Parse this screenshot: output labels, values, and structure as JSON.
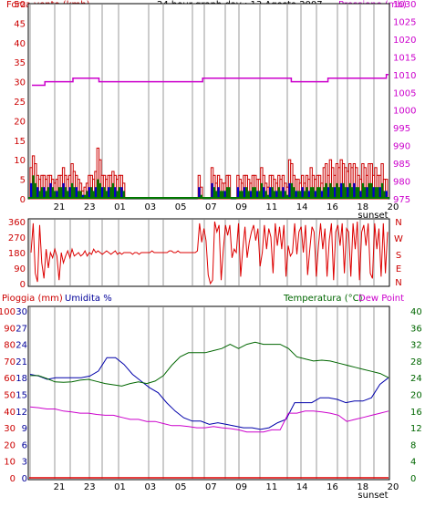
{
  "header": {
    "left_label": "Forza vento (kmh)",
    "title": "24 hour graph day : 13 Agosto 2007",
    "right_label": "Pressione (mb)"
  },
  "colors": {
    "wind": "#cc0000",
    "gust_fill": "#ffffff",
    "wind_green": "#007700",
    "wind_blue": "#0000cc",
    "pressure": "#cc00cc",
    "direction": "#dd0000",
    "rain": "#dd0000",
    "humidity": "#0000aa",
    "temperature": "#006600",
    "dewpoint": "#cc00cc",
    "gridline": "#cccccc",
    "frame": "#000000"
  },
  "bottom_header": {
    "rain_label": "Pioggia (mm)",
    "humidity_label": "Umidita %",
    "temp_label": "Temperatura (°C)",
    "dew_label": "Dew Point"
  },
  "chart_data": [
    {
      "id": "wind-pressure",
      "type": "bar",
      "x_ticks": [
        "21",
        "23",
        "01",
        "03",
        "05",
        "07",
        "09",
        "11",
        "14",
        "16",
        "18",
        "20"
      ],
      "x_annotation": "sunset",
      "left_axis": {
        "ticks": [
          0,
          5,
          10,
          15,
          20,
          25,
          30,
          35,
          40,
          45,
          50
        ],
        "ylim": [
          0,
          50
        ]
      },
      "right_axis": {
        "ticks": [
          975,
          980,
          985,
          990,
          995,
          1000,
          1005,
          1010,
          1015,
          1020,
          1025,
          1030
        ],
        "ylim": [
          975,
          1030
        ]
      },
      "series": [
        {
          "id": "gust",
          "axis": "left",
          "values": [
            8,
            11,
            9,
            6,
            5,
            6,
            6,
            5,
            6,
            6,
            5,
            4,
            5,
            6,
            6,
            8,
            6,
            5,
            6,
            9,
            7,
            6,
            5,
            4,
            2,
            3,
            4,
            6,
            6,
            5,
            7,
            13,
            10,
            6,
            6,
            5,
            6,
            6,
            7,
            6,
            5,
            6,
            6,
            4,
            0,
            0,
            0,
            0,
            0,
            0,
            0,
            0,
            0,
            0,
            0,
            0,
            0,
            0,
            0,
            0,
            0,
            0,
            0,
            0,
            0,
            0,
            0,
            0,
            0,
            0,
            0,
            0,
            0,
            0,
            0,
            0,
            0,
            0,
            6,
            3,
            0,
            0,
            0,
            0,
            8,
            6,
            4,
            6,
            5,
            4,
            4,
            6,
            6,
            0,
            0,
            0,
            6,
            5,
            4,
            6,
            6,
            5,
            4,
            6,
            6,
            5,
            5,
            8,
            6,
            4,
            3,
            6,
            6,
            5,
            4,
            6,
            5,
            6,
            4,
            3,
            10,
            9,
            6,
            5,
            5,
            4,
            6,
            4,
            6,
            5,
            8,
            6,
            5,
            6,
            6,
            4,
            8,
            9,
            6,
            10,
            8,
            6,
            9,
            8,
            10,
            9,
            8,
            7,
            9,
            8,
            9,
            8,
            6,
            5,
            9,
            8,
            6,
            9,
            9,
            6,
            8,
            6,
            6,
            9,
            5,
            5
          ]
        },
        {
          "id": "avg",
          "axis": "left",
          "values": [
            4,
            6,
            4,
            3,
            2,
            3,
            3,
            2,
            3,
            4,
            3,
            2,
            2,
            3,
            3,
            4,
            3,
            2,
            3,
            4,
            3,
            3,
            2,
            2,
            1,
            1,
            2,
            3,
            3,
            2,
            3,
            5,
            4,
            3,
            3,
            2,
            3,
            3,
            4,
            3,
            2,
            3,
            3,
            2,
            0,
            0,
            0,
            0,
            0,
            0,
            0,
            0,
            0,
            0,
            0,
            0,
            0,
            0,
            0,
            0,
            0,
            0,
            0,
            0,
            0,
            0,
            0,
            0,
            0,
            0,
            0,
            0,
            0,
            0,
            0,
            0,
            0,
            0,
            3,
            1,
            0,
            0,
            0,
            0,
            4,
            3,
            2,
            3,
            2,
            2,
            2,
            3,
            3,
            0,
            0,
            0,
            3,
            2,
            2,
            3,
            3,
            2,
            2,
            3,
            3,
            2,
            2,
            4,
            3,
            2,
            1,
            3,
            3,
            2,
            2,
            3,
            2,
            3,
            2,
            1,
            4,
            4,
            3,
            2,
            2,
            2,
            3,
            2,
            3,
            2,
            3,
            3,
            2,
            3,
            3,
            2,
            3,
            4,
            3,
            4,
            3,
            3,
            4,
            3,
            4,
            4,
            3,
            3,
            4,
            3,
            4,
            3,
            3,
            2,
            4,
            3,
            3,
            4,
            4,
            3,
            3,
            3,
            3,
            4,
            2,
            2
          ]
        },
        {
          "id": "pressure",
          "axis": "right",
          "values": [
            1007,
            1007,
            1007,
            1007,
            1007,
            1007,
            1008,
            1008,
            1008,
            1008,
            1008,
            1008,
            1008,
            1008,
            1008,
            1008,
            1008,
            1008,
            1008,
            1009,
            1009,
            1009,
            1009,
            1009,
            1009,
            1009,
            1009,
            1009,
            1009,
            1009,
            1009,
            1008,
            1008,
            1008,
            1008,
            1008,
            1008,
            1008,
            1008,
            1008,
            1008,
            1008,
            1008,
            1008,
            1008,
            1008,
            1008,
            1008,
            1008,
            1008,
            1008,
            1008,
            1008,
            1008,
            1008,
            1008,
            1008,
            1008,
            1008,
            1008,
            1008,
            1008,
            1008,
            1008,
            1008,
            1008,
            1008,
            1008,
            1008,
            1008,
            1008,
            1008,
            1008,
            1008,
            1008,
            1008,
            1008,
            1008,
            1008,
            1009,
            1009,
            1009,
            1009,
            1009,
            1009,
            1009,
            1009,
            1009,
            1009,
            1009,
            1009,
            1009,
            1009,
            1009,
            1009,
            1009,
            1009,
            1009,
            1009,
            1009,
            1009,
            1009,
            1009,
            1009,
            1009,
            1009,
            1009,
            1009,
            1009,
            1009,
            1009,
            1009,
            1009,
            1009,
            1009,
            1009,
            1009,
            1009,
            1009,
            1009,
            1008,
            1008,
            1008,
            1008,
            1008,
            1008,
            1008,
            1008,
            1008,
            1008,
            1008,
            1008,
            1008,
            1008,
            1008,
            1008,
            1008,
            1009,
            1009,
            1009,
            1009,
            1009,
            1009,
            1009,
            1009,
            1009,
            1009,
            1009,
            1009,
            1009,
            1009,
            1009,
            1009,
            1009,
            1009,
            1009,
            1009,
            1009,
            1009,
            1009,
            1009,
            1009,
            1009,
            1009,
            1010,
            1010
          ]
        }
      ]
    },
    {
      "id": "wind-direction",
      "type": "line",
      "x_ticks": [
        "21",
        "23",
        "01",
        "03",
        "05",
        "07",
        "09",
        "11",
        "14",
        "16",
        "18",
        "20"
      ],
      "left_axis": {
        "ticks": [
          0,
          90,
          180,
          270,
          360
        ],
        "ylim": [
          0,
          360
        ]
      },
      "right_axis": {
        "labels": [
          "N",
          "W",
          "S",
          "E",
          "N"
        ]
      },
      "series": [
        {
          "id": "direction",
          "values": [
            180,
            350,
            60,
            10,
            340,
            120,
            30,
            200,
            90,
            180,
            150,
            200,
            160,
            20,
            180,
            120,
            160,
            190,
            150,
            200,
            160,
            170,
            180,
            160,
            170,
            190,
            160,
            180,
            170,
            200,
            180,
            190,
            180,
            170,
            180,
            190,
            180,
            170,
            180,
            190,
            170,
            180,
            170,
            180,
            180,
            180,
            180,
            170,
            180,
            180,
            170,
            180,
            180,
            180,
            180,
            180,
            190,
            180,
            180,
            180,
            180,
            180,
            180,
            180,
            190,
            190,
            180,
            180,
            190,
            180,
            180,
            180,
            180,
            180,
            180,
            180,
            180,
            190,
            350,
            240,
            320,
            250,
            50,
            0,
            20,
            360,
            300,
            340,
            20,
            200,
            340,
            280,
            340,
            150,
            200,
            180,
            350,
            40,
            200,
            330,
            150,
            240,
            300,
            340,
            250,
            320,
            100,
            180,
            340,
            200,
            320,
            270,
            60,
            350,
            220,
            330,
            200,
            340,
            40,
            220,
            160,
            180,
            350,
            170,
            300,
            330,
            180,
            340,
            50,
            200,
            330,
            300,
            40,
            220,
            350,
            200,
            320,
            40,
            250,
            350,
            20,
            300,
            340,
            220,
            350,
            60,
            320,
            300,
            40,
            350,
            200,
            360,
            20,
            300,
            340,
            220,
            350,
            60,
            30,
            350,
            200,
            320,
            40,
            350,
            60,
            300
          ]
        }
      ]
    },
    {
      "id": "temp-humidity",
      "type": "line",
      "x_ticks": [
        "21",
        "23",
        "01",
        "03",
        "05",
        "07",
        "09",
        "11",
        "14",
        "16",
        "18",
        "20"
      ],
      "x_annotation": "sunset",
      "rain_axis": {
        "ticks": [
          0,
          10,
          20,
          30,
          40,
          50,
          60,
          70,
          80,
          90,
          100
        ],
        "ylim": [
          0,
          100
        ]
      },
      "humidity_axis": {
        "ticks": [
          0,
          3,
          6,
          9,
          12,
          15,
          18,
          21,
          24,
          27,
          30
        ],
        "ylim": [
          0,
          30
        ]
      },
      "temp_axis": {
        "ticks": [
          0,
          4,
          8,
          12,
          16,
          20,
          24,
          28,
          32,
          36,
          40
        ],
        "ylim": [
          0,
          40
        ]
      },
      "series": [
        {
          "id": "rain",
          "values": [
            0,
            0,
            0,
            0,
            0,
            0,
            0,
            0,
            0,
            0,
            0,
            0
          ]
        },
        {
          "id": "humidity",
          "values": [
            62,
            61,
            59,
            60,
            60,
            60,
            60,
            61,
            64,
            72,
            72,
            68,
            62,
            58,
            54,
            51,
            45,
            40,
            36,
            34,
            34,
            32,
            33,
            32,
            31,
            30,
            30,
            29,
            30,
            33,
            35,
            45,
            45,
            45,
            48,
            48,
            47,
            45,
            46,
            46,
            48,
            56,
            60
          ]
        },
        {
          "id": "temperature",
          "values": [
            24.5,
            24.5,
            23.8,
            23.0,
            22.9,
            23.0,
            23.4,
            23.6,
            23.1,
            22.6,
            22.3,
            22.0,
            22.6,
            23.0,
            22.6,
            23.2,
            24.5,
            27.0,
            29.0,
            30.0,
            30.0,
            30.0,
            30.5,
            31.0,
            32.0,
            31.0,
            32.0,
            32.5,
            32.0,
            32.0,
            32.0,
            31.0,
            29.0,
            28.5,
            28.0,
            28.2,
            28.0,
            27.5,
            27.0,
            26.5,
            26.0,
            25.5,
            25.0,
            24.0
          ]
        },
        {
          "id": "dewpoint",
          "values": [
            17.0,
            16.8,
            16.5,
            16.5,
            16.0,
            15.8,
            15.5,
            15.5,
            15.2,
            15.0,
            15.0,
            14.5,
            14.0,
            14.0,
            13.5,
            13.5,
            13.0,
            12.5,
            12.5,
            12.3,
            12.0,
            12.0,
            12.3,
            12.0,
            11.8,
            11.5,
            11.0,
            11.0,
            11.0,
            11.5,
            11.5,
            15.5,
            15.5,
            16.0,
            16.0,
            15.8,
            15.5,
            15.0,
            13.5,
            14.0,
            14.5,
            15.0,
            15.5,
            16.0
          ]
        }
      ]
    }
  ]
}
